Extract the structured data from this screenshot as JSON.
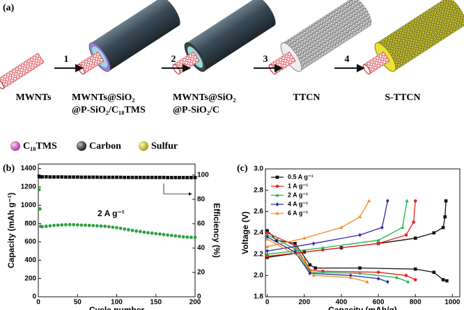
{
  "panel_a": {
    "label": "(a)",
    "steps": [
      "1",
      "2",
      "3",
      "4"
    ],
    "stages": [
      [
        "MWNTs"
      ],
      [
        "MWNTs@SiO₂",
        "@P-SiO₂/C₁₈TMS"
      ],
      [
        "MWNTs@SiO₂",
        "@P-SiO₂/C"
      ],
      [
        "TTCN"
      ],
      [
        "S-TTCN"
      ]
    ],
    "legend": [
      "C₁₈TMS",
      "Carbon",
      "Sulfur"
    ]
  },
  "chart_data": [
    {
      "type": "scatter",
      "panel": "(b)",
      "xlabel": "Cycle number",
      "ylabel": "Capacity (mAh g⁻¹)",
      "y2label": "Efficiency (%)",
      "annotation": "2 A g⁻¹",
      "x": [
        1,
        2,
        3,
        5,
        10,
        15,
        20,
        25,
        30,
        35,
        40,
        45,
        50,
        55,
        60,
        65,
        70,
        75,
        80,
        85,
        90,
        95,
        100,
        105,
        110,
        115,
        120,
        125,
        130,
        135,
        140,
        145,
        150,
        155,
        160,
        165,
        170,
        175,
        180,
        185,
        190,
        195,
        200
      ],
      "series": [
        {
          "color": "#2e9e3e",
          "marker": "circle",
          "values": [
            1170,
            960,
            770,
            765,
            770,
            775,
            780,
            782,
            785,
            787,
            788,
            787,
            785,
            783,
            782,
            780,
            778,
            775,
            772,
            770,
            765,
            760,
            755,
            748,
            740,
            732,
            725,
            718,
            712,
            705,
            700,
            695,
            690,
            685,
            680,
            675,
            670,
            665,
            660,
            655,
            652,
            650,
            648
          ]
        },
        {
          "color": "#111111",
          "marker": "square",
          "axis": "y2",
          "values": [
            99,
            98.5,
            98.5,
            98.5,
            98.5,
            98.4,
            98.4,
            98.4,
            98.4,
            98.3,
            98.3,
            98.3,
            98.3,
            98.2,
            98.2,
            98.2,
            98.2,
            98.2,
            98.1,
            98.1,
            98.1,
            98.1,
            98.1,
            98.1,
            98,
            98,
            98,
            98,
            98,
            98,
            98,
            98,
            98,
            98,
            98,
            97.9,
            97.9,
            97.9,
            97.9,
            97.9,
            97.9,
            97.9,
            97.9
          ]
        }
      ],
      "xlim": [
        0,
        200
      ],
      "xticks": [
        0,
        50,
        100,
        150,
        200
      ],
      "ylim": [
        0,
        1450
      ],
      "yticks": [
        0,
        200,
        400,
        600,
        800,
        1000,
        1200,
        1400
      ],
      "y2lim": [
        0,
        109
      ],
      "y2ticks": [
        0,
        20,
        40,
        60,
        80,
        100
      ]
    },
    {
      "type": "line",
      "panel": "(c)",
      "xlabel": "Capacity (mAh/g)",
      "ylabel": "Voltage (V)",
      "series": [
        {
          "name": "0.5 A g⁻¹",
          "color": "#111111",
          "marker": "square",
          "x": [
            0,
            50,
            150,
            230,
            260,
            500,
            800,
            900,
            950,
            970,
            null,
            0,
            200,
            400,
            600,
            800,
            900,
            950,
            960,
            965
          ],
          "values": [
            2.42,
            2.33,
            2.3,
            2.1,
            2.07,
            2.07,
            2.06,
            2.03,
            1.96,
            1.95,
            null,
            2.17,
            2.22,
            2.26,
            2.3,
            2.35,
            2.4,
            2.45,
            2.55,
            2.7
          ]
        },
        {
          "name": "1 A g⁻¹",
          "color": "#e8231f",
          "marker": "circle",
          "x": [
            0,
            150,
            230,
            300,
            600,
            750,
            800,
            null,
            0,
            300,
            600,
            750,
            790,
            800
          ],
          "values": [
            2.4,
            2.28,
            2.05,
            2.04,
            2.03,
            2,
            1.96,
            null,
            2.18,
            2.24,
            2.3,
            2.38,
            2.5,
            2.7
          ]
        },
        {
          "name": "2 A g⁻¹",
          "color": "#22b04b",
          "marker": "triangle",
          "x": [
            0,
            150,
            230,
            500,
            700,
            760,
            null,
            0,
            300,
            600,
            730,
            755
          ],
          "values": [
            2.38,
            2.25,
            2.03,
            2.02,
            1.98,
            1.94,
            null,
            2.2,
            2.26,
            2.33,
            2.45,
            2.7
          ]
        },
        {
          "name": "4 A g⁻¹",
          "color": "#2a2aa8",
          "marker": "diamond",
          "x": [
            0,
            150,
            230,
            450,
            600,
            650,
            null,
            0,
            250,
            500,
            620,
            650
          ],
          "values": [
            2.36,
            2.22,
            2.02,
            2,
            1.97,
            1.94,
            null,
            2.23,
            2.3,
            2.38,
            2.45,
            2.7
          ]
        },
        {
          "name": "6 A g⁻¹",
          "color": "#f08a1c",
          "marker": "triangle",
          "x": [
            0,
            200,
            250,
            450,
            540,
            null,
            0,
            200,
            400,
            500,
            550
          ],
          "values": [
            2.34,
            2.15,
            2,
            1.98,
            1.94,
            null,
            2.27,
            2.35,
            2.45,
            2.55,
            2.7
          ]
        }
      ],
      "xlim": [
        -10,
        1040
      ],
      "xticks": [
        0,
        200,
        400,
        600,
        800,
        1000
      ],
      "ylim": [
        1.8,
        3.0
      ],
      "yticks": [
        1.8,
        {
          "value": 2,
          "label": "2.0"
        },
        2.2,
        2.4,
        2.6,
        2.8,
        {
          "value": 3,
          "label": "3.0"
        }
      ]
    }
  ]
}
